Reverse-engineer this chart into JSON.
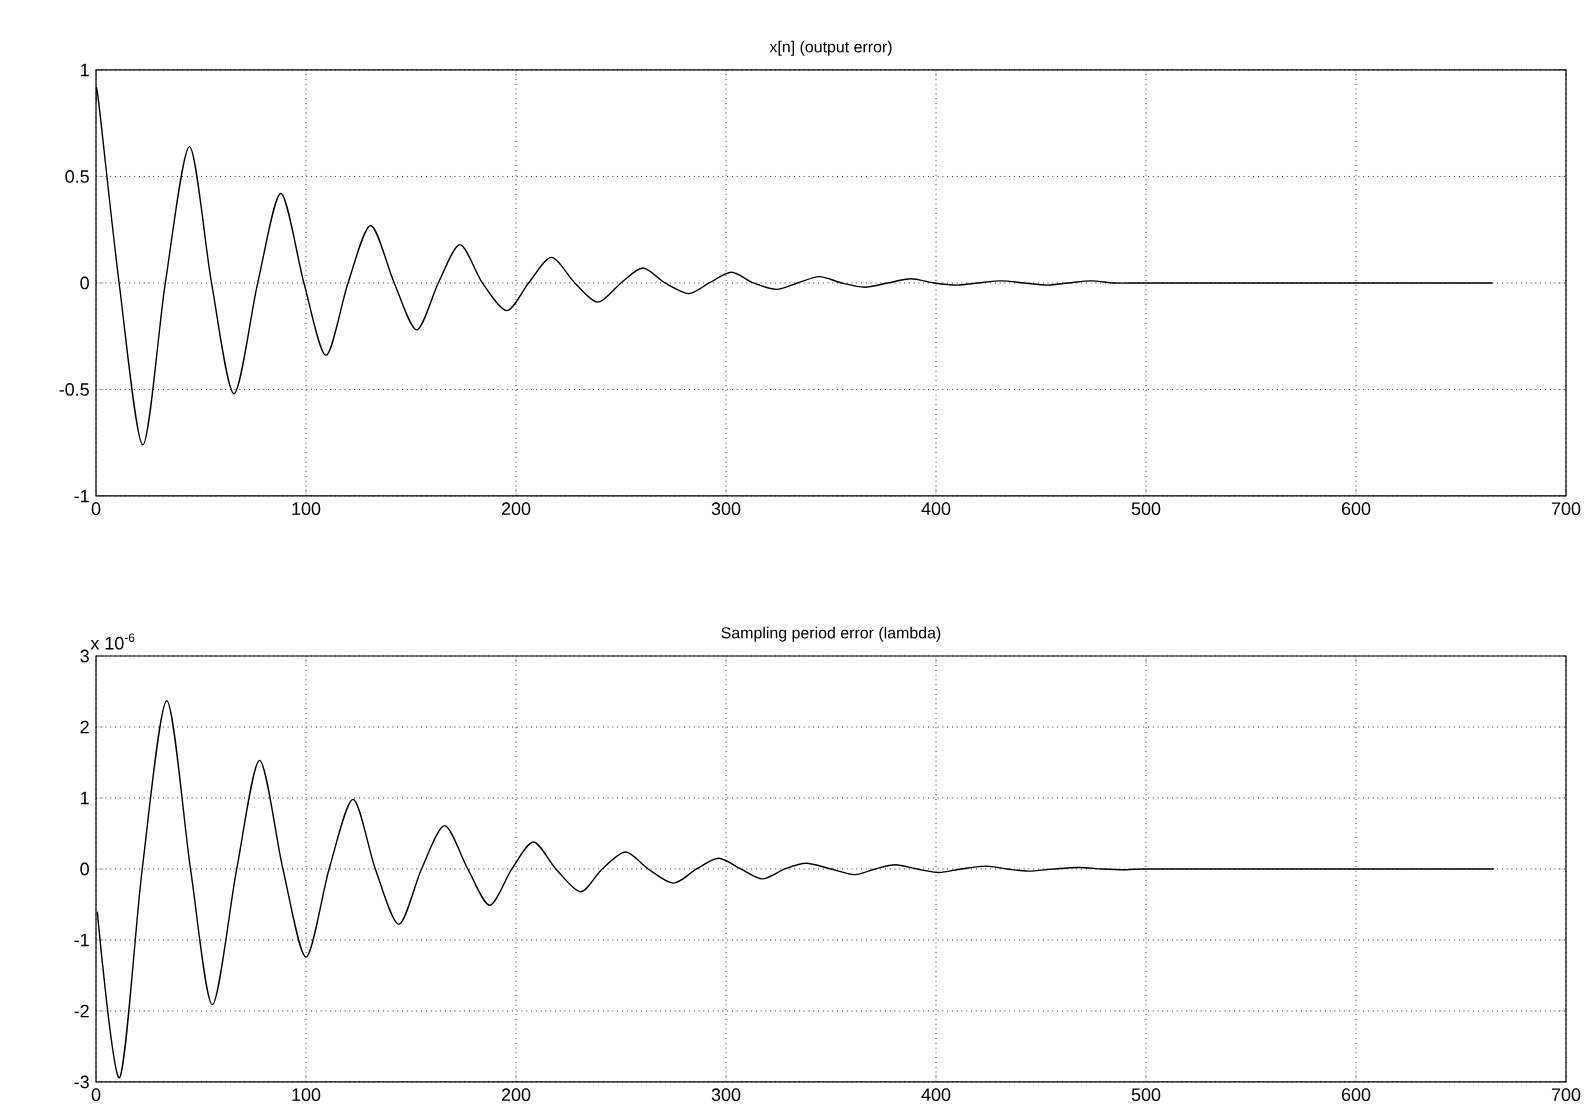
{
  "chart_data": [
    {
      "type": "line",
      "title": "x[n] (output error)",
      "color": "#000000",
      "grid": true,
      "x": [
        0,
        1,
        11,
        22.3,
        33,
        44.5,
        55,
        65.7,
        77,
        88,
        99,
        109.5,
        120,
        130.8,
        142,
        152.7,
        163,
        173.3,
        184,
        195.6,
        206,
        216.9,
        228,
        239,
        250,
        260.4,
        271,
        282.3,
        292,
        302.6,
        313,
        324,
        334,
        344.5,
        355,
        366,
        377,
        388,
        399,
        410,
        420,
        431,
        442,
        453,
        463,
        474,
        485,
        496,
        507,
        560,
        665
      ],
      "values": [
        0.85,
        0.87,
        0,
        -0.76,
        0,
        0.64,
        0,
        -0.52,
        0,
        0.42,
        0,
        -0.34,
        0,
        0.27,
        0,
        -0.22,
        0,
        0.18,
        0,
        -0.13,
        0,
        0.12,
        0,
        -0.09,
        0,
        0.07,
        0,
        -0.05,
        0,
        0.05,
        0,
        -0.03,
        0,
        0.03,
        0,
        -0.02,
        0,
        0.02,
        0,
        -0.01,
        0,
        0.01,
        0,
        -0.01,
        0,
        0.01,
        0,
        0,
        0,
        0,
        0
      ],
      "xlim": [
        0,
        700
      ],
      "xticks": [
        0,
        100,
        200,
        300,
        400,
        500,
        600,
        700
      ],
      "ylim": [
        -1,
        1
      ],
      "yticks": [
        -1,
        -0.5,
        0,
        0.5,
        1
      ]
    },
    {
      "type": "line",
      "title": "Sampling period error (lambda)",
      "color": "#000000",
      "grid": true,
      "annotations": [
        "x 10$^{-6}$"
      ],
      "x": [
        0.6,
        11.2,
        22,
        33.7,
        45,
        55.4,
        67,
        77.9,
        89,
        100,
        111,
        122.4,
        133,
        144.2,
        155,
        166,
        177,
        187.5,
        198,
        208.3,
        219,
        230.8,
        241,
        252.2,
        263,
        275,
        286,
        296.5,
        307,
        317.3,
        328,
        338.1,
        350,
        361.5,
        371,
        380.6,
        391,
        401.3,
        412,
        423.6,
        434,
        444,
        456,
        468,
        479,
        490,
        500,
        560,
        665.6
      ],
      "values": [
        -0.6,
        -2.94,
        0,
        2.37,
        0,
        -1.91,
        0,
        1.53,
        0,
        -1.24,
        0,
        0.98,
        0,
        -0.78,
        0,
        0.61,
        0,
        -0.51,
        0,
        0.38,
        0,
        -0.32,
        0,
        0.24,
        0,
        -0.2,
        0,
        0.15,
        0,
        -0.14,
        0,
        0.08,
        0,
        -0.08,
        0,
        0.06,
        0,
        -0.05,
        0,
        0.04,
        0,
        -0.03,
        0,
        0.02,
        0,
        -0.01,
        0,
        0,
        0
      ],
      "xlim": [
        0,
        700
      ],
      "xticks": [
        0,
        100,
        200,
        300,
        400,
        500,
        600,
        700
      ],
      "ylim": [
        -3,
        3
      ],
      "yticks": [
        -3,
        -2,
        -1,
        0,
        1,
        2,
        3
      ]
    }
  ]
}
